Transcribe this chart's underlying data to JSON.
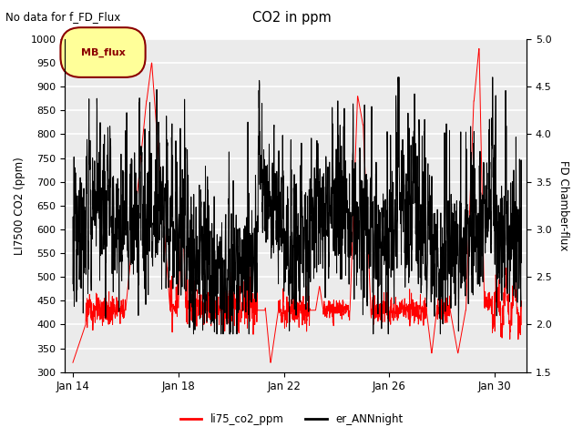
{
  "title": "CO2 in ppm",
  "subtitle": "No data for f_FD_Flux",
  "ylabel_left": "LI7500 CO2 (ppm)",
  "ylabel_right": "FD Chamber-flux",
  "ylim_left": [
    300,
    1000
  ],
  "ylim_right": [
    1.5,
    5.0
  ],
  "yticks_left": [
    300,
    350,
    400,
    450,
    500,
    550,
    600,
    650,
    700,
    750,
    800,
    850,
    900,
    950,
    1000
  ],
  "yticks_right": [
    1.5,
    2.0,
    2.5,
    3.0,
    3.5,
    4.0,
    4.5,
    5.0
  ],
  "xtick_labels": [
    "Jan 14",
    "Jan 18",
    "Jan 22",
    "Jan 26",
    "Jan 30"
  ],
  "xtick_positions": [
    14,
    18,
    22,
    26,
    30
  ],
  "legend_label1": "li75_co2_ppm",
  "legend_label2": "er_ANNnight",
  "legend_box_label": "MB_flux",
  "color_red": "#ff0000",
  "color_black": "#000000",
  "color_legend_bg": "#ffff99",
  "color_legend_border": "#8b0000",
  "background_color": "#ebebeb",
  "grid_color": "#ffffff",
  "xlim": [
    13.7,
    31.2
  ],
  "x_start_day": 14,
  "x_end_day": 31
}
